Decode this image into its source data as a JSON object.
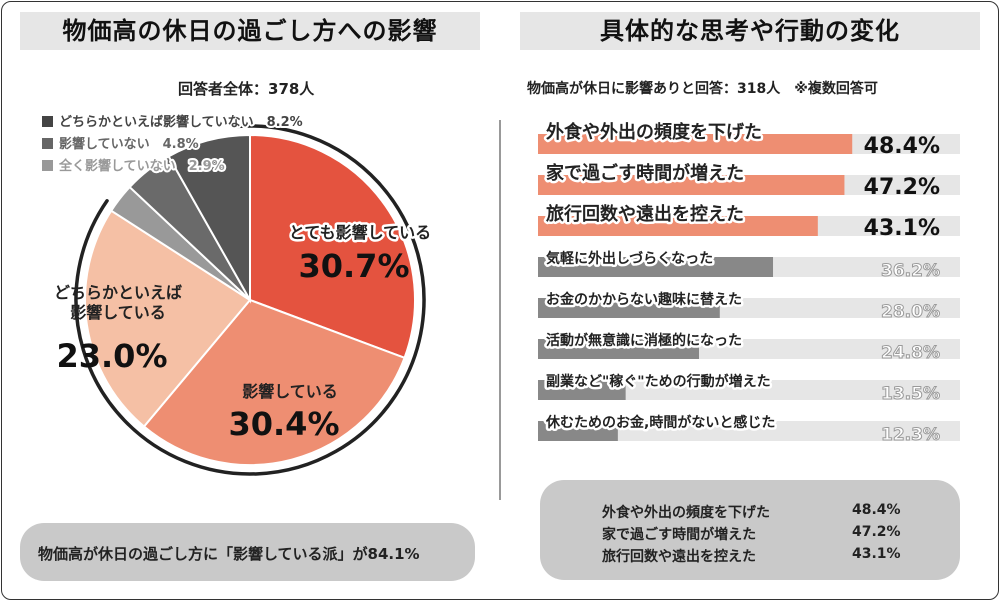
{
  "left_panel": {
    "title": "物価高の休日の過ごし方への影響",
    "subtitle": "回答者全体：378人",
    "summary": "物価高が休日の過ごし方に「影響している派」が84.1%"
  },
  "right_panel": {
    "title": "具体的な思考や行動の変化",
    "subtitle": "物価高が休日に影響ありと回答：318人　※複数回答可",
    "summary_rows": [
      {
        "label": "外食や外出の頻度を下げた",
        "value": "48.4%"
      },
      {
        "label": "家で過ごす時間が増えた",
        "value": "47.2%"
      },
      {
        "label": "旅行回数や遠出を控えた",
        "value": "43.1%"
      }
    ]
  },
  "chart_data": [
    {
      "type": "pie",
      "slices": [
        {
          "label": "とても影響している",
          "value": 30.7,
          "color": "#e4533f",
          "display": "30.7%"
        },
        {
          "label": "影響している",
          "value": 30.4,
          "color": "#ee8e72",
          "display": "30.4%"
        },
        {
          "label": "どちらかといえば影響している",
          "label_lines": [
            "どちらかといえば",
            "影響している"
          ],
          "value": 23.0,
          "color": "#f5c0a5",
          "display": "23.0%"
        },
        {
          "label": "全く影響していない",
          "value": 2.9,
          "color": "#999999",
          "display": "2.9%"
        },
        {
          "label": "影響していない",
          "value": 4.8,
          "color": "#6a6a6a",
          "display": "4.8%"
        },
        {
          "label": "どちらかといえば影響していない",
          "value": 8.2,
          "color": "#555555",
          "display": "8.2%"
        }
      ],
      "legend": [
        {
          "text": "どちらかといえば影響していない　8.2%",
          "color": "#444444"
        },
        {
          "text": "影響していない　4.8%",
          "color": "#666666"
        },
        {
          "text": "全く影響していない　2.9%",
          "color": "#999999"
        }
      ]
    },
    {
      "type": "bar",
      "orientation": "horizontal",
      "categories": [
        "外食や外出の頻度を下げた",
        "家で過ごす時間が増えた",
        "旅行回数や遠出を控えた",
        "気軽に外出しづらくなった",
        "お金のかからない趣味に替えた",
        "活動が無意識に消極的になった",
        "副業など\"稼ぐ\"ための行動が増えた",
        "休むためのお金,時間がないと感じた"
      ],
      "values": [
        48.4,
        47.2,
        43.1,
        36.2,
        28.0,
        24.8,
        13.5,
        12.3
      ],
      "display": [
        "48.4%",
        "47.2%",
        "43.1%",
        "36.2%",
        "28.0%",
        "24.8%",
        "13.5%",
        "12.3%"
      ],
      "highlight_top": 3,
      "highlight_color": "#ee8e72",
      "other_color": "#888888",
      "track_color": "#e6e6e6"
    }
  ]
}
